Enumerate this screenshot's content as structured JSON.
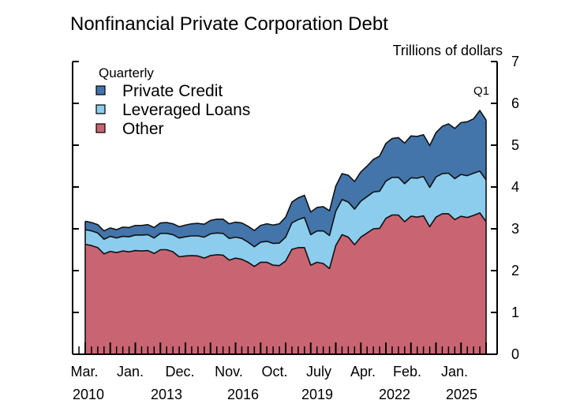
{
  "chart_data": {
    "type": "area",
    "stacked": true,
    "title": "Nonfinancial Private Corporation Debt",
    "unit_label": "Trillions of dollars",
    "annotation": "Q1",
    "legend": {
      "title": "Quarterly",
      "placement": "top-left",
      "entries": [
        "Private Credit",
        "Leveraged Loans",
        "Other"
      ]
    },
    "colors": {
      "Private Credit": "#4375ab",
      "Leveraged Loans": "#8ccdee",
      "Other": "#c96573"
    },
    "ylim": [
      0,
      7
    ],
    "y_ticks": [
      0,
      1,
      2,
      3,
      4,
      5,
      6,
      7
    ],
    "y_axis_side": "right",
    "x_tick_labels": [
      {
        "month": "Mar.",
        "year": "2010"
      },
      {
        "month": "Jan.",
        "year": ""
      },
      {
        "month": "Dec.",
        "year": "2013"
      },
      {
        "month": "Nov.",
        "year": ""
      },
      {
        "month": "Oct.",
        "year": "2016"
      },
      {
        "month": "July",
        "year": ""
      },
      {
        "month": "Apr.",
        "year": "2019"
      },
      {
        "month": "Feb.",
        "year": ""
      },
      {
        "month": "Jan.",
        "year": "2022"
      },
      {
        "month": "",
        "year": "2025"
      }
    ],
    "x_start": "2010-Q1",
    "x_end": "2025-Q1",
    "series": [
      {
        "name": "Other",
        "values": [
          2.63,
          2.6,
          2.55,
          2.4,
          2.46,
          2.43,
          2.47,
          2.45,
          2.48,
          2.47,
          2.48,
          2.41,
          2.5,
          2.5,
          2.45,
          2.33,
          2.35,
          2.36,
          2.35,
          2.3,
          2.36,
          2.38,
          2.37,
          2.25,
          2.3,
          2.27,
          2.2,
          2.1,
          2.2,
          2.2,
          2.13,
          2.12,
          2.23,
          2.51,
          2.55,
          2.55,
          2.13,
          2.2,
          2.17,
          2.05,
          2.6,
          2.86,
          2.8,
          2.62,
          2.8,
          2.9,
          3.0,
          3.01,
          3.25,
          3.33,
          3.33,
          3.17,
          3.3,
          3.28,
          3.31,
          3.05,
          3.28,
          3.36,
          3.36,
          3.22,
          3.3,
          3.27,
          3.32,
          3.38,
          3.17
        ]
      },
      {
        "name": "Leveraged Loans",
        "values": [
          0.35,
          0.35,
          0.35,
          0.35,
          0.36,
          0.35,
          0.35,
          0.36,
          0.37,
          0.38,
          0.38,
          0.37,
          0.39,
          0.39,
          0.41,
          0.45,
          0.46,
          0.47,
          0.48,
          0.5,
          0.52,
          0.52,
          0.52,
          0.52,
          0.5,
          0.5,
          0.48,
          0.47,
          0.48,
          0.5,
          0.52,
          0.54,
          0.57,
          0.63,
          0.67,
          0.72,
          0.73,
          0.75,
          0.78,
          0.79,
          0.82,
          0.84,
          0.84,
          0.85,
          0.86,
          0.87,
          0.88,
          0.89,
          0.89,
          0.9,
          0.9,
          0.91,
          0.92,
          0.93,
          0.94,
          0.94,
          0.96,
          0.96,
          0.97,
          0.98,
          1.0,
          1.0,
          1.01,
          1.0,
          1.0
        ]
      },
      {
        "name": "Private Credit",
        "values": [
          0.2,
          0.2,
          0.2,
          0.2,
          0.2,
          0.2,
          0.22,
          0.22,
          0.23,
          0.23,
          0.24,
          0.25,
          0.25,
          0.26,
          0.26,
          0.27,
          0.28,
          0.29,
          0.3,
          0.31,
          0.32,
          0.33,
          0.34,
          0.35,
          0.36,
          0.37,
          0.38,
          0.39,
          0.4,
          0.42,
          0.44,
          0.46,
          0.48,
          0.5,
          0.52,
          0.53,
          0.54,
          0.56,
          0.58,
          0.59,
          0.6,
          0.62,
          0.64,
          0.66,
          0.7,
          0.73,
          0.78,
          0.84,
          0.9,
          0.93,
          0.95,
          0.97,
          1.0,
          1.0,
          1.0,
          1.0,
          1.06,
          1.13,
          1.18,
          1.2,
          1.24,
          1.29,
          1.3,
          1.45,
          1.43
        ]
      }
    ]
  }
}
